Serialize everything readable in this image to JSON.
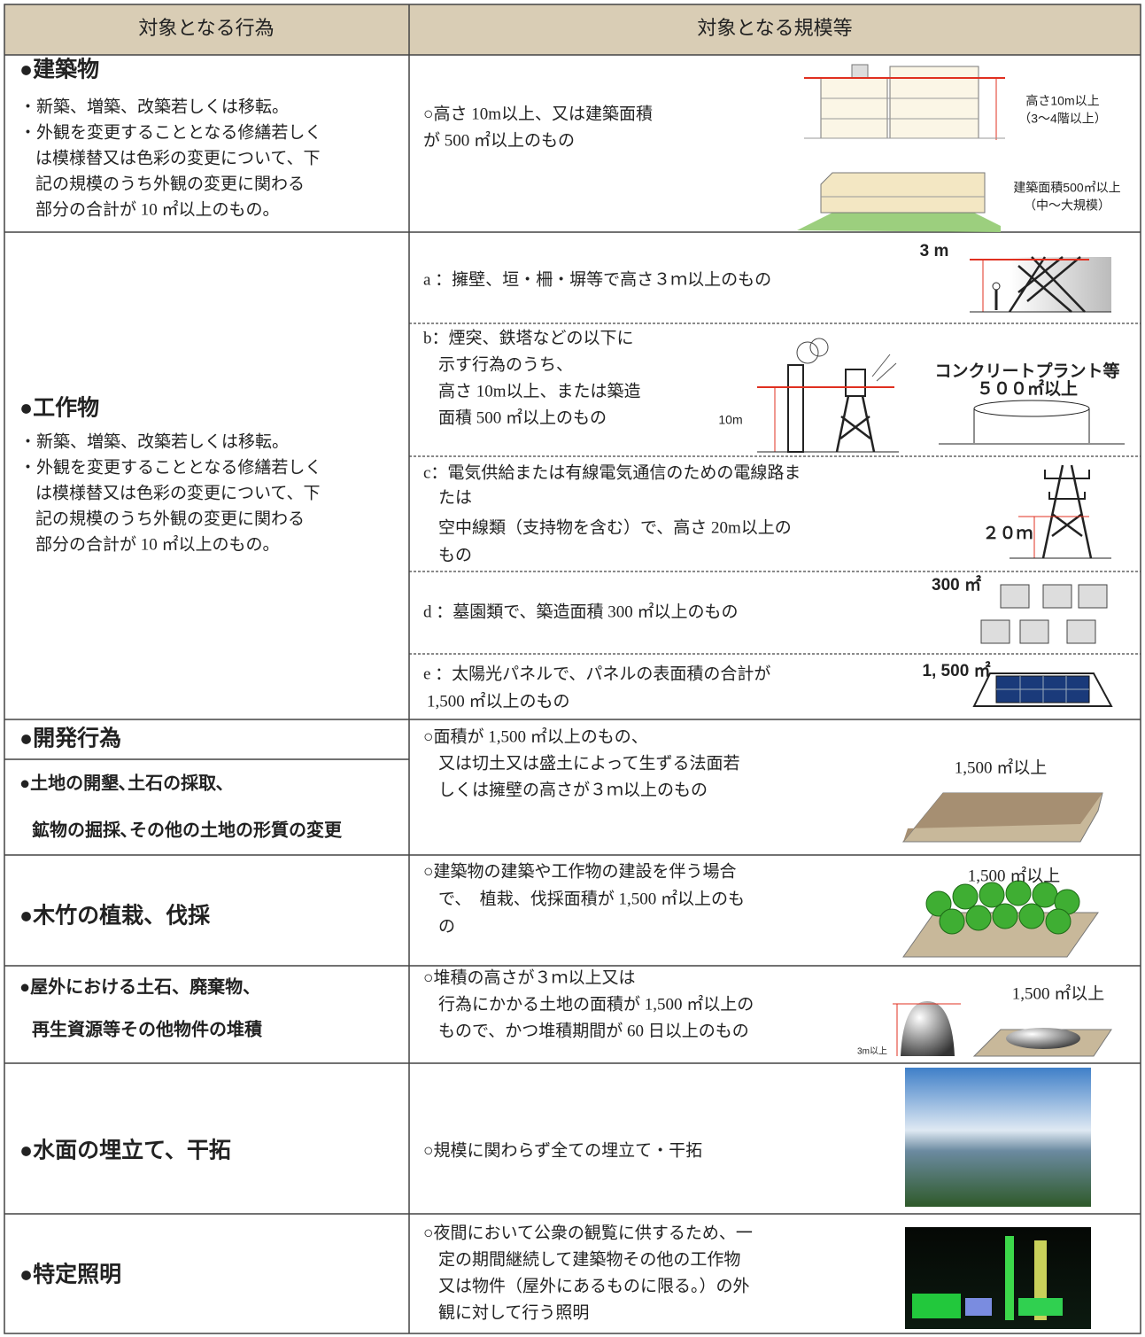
{
  "header": {
    "left": "対象となる行為",
    "right": "対象となる規模等"
  },
  "rows": [
    {
      "title": [
        "●建築物"
      ],
      "notes": [
        "・新築、増築、改築若しくは移転。",
        "・外観を変更することとなる修繕若しく",
        "は模様替又は色彩の変更について、下",
        "記の規模のうち外観の変更に関わる",
        "部分の合計が 10 ㎡以上のもの。"
      ],
      "description": [
        "○高さ 10m以上、又は建築面積",
        "が 500 ㎡以上のもの"
      ],
      "labels": [
        "高さ10m以上",
        "（3～4階以上）",
        "建築面積500㎡以上",
        "（中～大規模）"
      ]
    },
    {
      "title": [
        "●工作物"
      ],
      "notes": [
        "・新築、増築、改築若しくは移転。",
        "・外観を変更することとなる修繕若しく",
        "は模様替又は色彩の変更について、下",
        "記の規模のうち外観の変更に関わる",
        "部分の合計が 10 ㎡以上のもの。"
      ],
      "items": [
        {
          "lines": [
            "a ：擁壁、垣・柵・塀等で高さ３ｍ以上のもの"
          ],
          "labels": [
            "3 m"
          ]
        },
        {
          "lines": [
            "b：煙突、鉄塔などの以下に",
            "示す行為のうち、",
            "高さ 10m以上、または築造",
            "面積 500 ㎡以上のもの"
          ],
          "labels": [
            "10m",
            "コンクリートプラント等",
            "５００㎡以上"
          ]
        },
        {
          "lines": [
            "c：電気供給または有線電気通信のための電線路ま",
            "たは",
            "空中線類（支持物を含む）で、高さ 20m以上の",
            "もの"
          ],
          "labels": [
            "２０ｍ"
          ]
        },
        {
          "lines": [
            "d ：墓園類で、築造面積 300 ㎡以上のもの"
          ],
          "labels": [
            "300 ㎡"
          ]
        },
        {
          "lines": [
            "e ：太陽光パネルで、パネルの表面積の合計が",
            "1,500 ㎡以上のもの"
          ],
          "labels": [
            "1, 500 ㎡"
          ]
        }
      ]
    },
    {
      "title": [
        "●開発行為"
      ],
      "subtitle": [
        "●土地の開墾､土石の採取､",
        "鉱物の掘採､その他の土地の形質の変更"
      ],
      "description": [
        "○面積が 1,500 ㎡以上のもの、",
        "又は切土又は盛土によって生ずる法面若",
        "しくは擁壁の高さが３ｍ以上のもの"
      ],
      "labels": [
        "1,500 ㎡以上"
      ]
    },
    {
      "title": [
        "●木竹の植栽、伐採"
      ],
      "description": [
        "○建築物の建築や工作物の建設を伴う場合",
        "で、　植栽、伐採面積が 1,500 ㎡以上のも",
        "の"
      ],
      "labels": [
        "1,500 ㎡以上"
      ]
    },
    {
      "title": [
        "●屋外における土石、廃棄物、",
        "再生資源等その他物件の堆積"
      ],
      "description": [
        "○堆積の高さが３ｍ以上又は",
        "行為にかかる土地の面積が 1,500 ㎡以上の",
        "もので、かつ堆積期間が 60 日以上のもの"
      ],
      "labels": [
        "3m以上",
        "1,500 ㎡以上"
      ]
    },
    {
      "title": [
        "●水面の埋立て、干拓"
      ],
      "description": [
        "○規模に関わらず全ての埋立て・干拓"
      ]
    },
    {
      "title": [
        "●特定照明"
      ],
      "description": [
        "○夜間において公衆の観覧に供するため、一",
        "定の期間継続して建築物その他の工作物",
        "又は物件（屋外にあるものに限る。）の外",
        "観に対して行う照明"
      ]
    }
  ]
}
